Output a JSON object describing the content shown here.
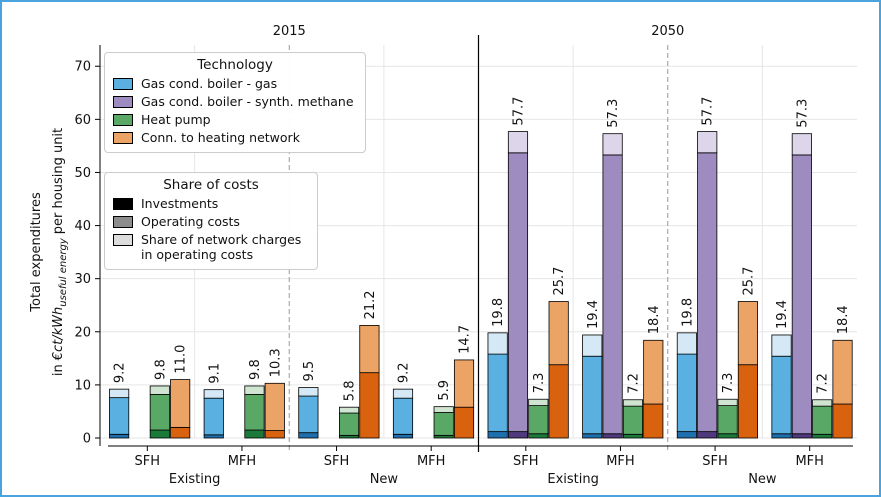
{
  "chart_data": {
    "type": "stacked_bar",
    "panels": [
      {
        "title": "2015",
        "groups": [
          {
            "label": "Existing",
            "categories": [
              "SFH",
              "MFH"
            ]
          },
          {
            "label": "New",
            "categories": [
              "SFH",
              "MFH"
            ]
          }
        ]
      },
      {
        "title": "2050",
        "groups": [
          {
            "label": "Existing",
            "categories": [
              "SFH",
              "MFH"
            ]
          },
          {
            "label": "New",
            "categories": [
              "SFH",
              "MFH"
            ]
          }
        ]
      }
    ],
    "ylabel": {
      "line1": "Total expenditures",
      "prefix": "in",
      "unit": "€ct/kWh",
      "unit_subscript": "useful energy",
      "suffix": "per housing unit"
    },
    "ylim": [
      0,
      74
    ],
    "yticks": [
      0,
      10,
      20,
      30,
      40,
      50,
      60,
      70
    ],
    "grid": true,
    "legend_title": "Technology",
    "series": [
      {
        "name": "Gas cond. boiler - gas",
        "color": "#5ab0e0",
        "investment_color": "#1f6fae",
        "network_color": "#d5e8f5",
        "investments": [
          0.7,
          0.6,
          1.0,
          0.7,
          1.2,
          0.8,
          1.2,
          0.8
        ],
        "operating": [
          6.9,
          6.9,
          6.9,
          6.8,
          14.6,
          14.6,
          14.6,
          14.6
        ],
        "network_charges": [
          1.6,
          1.6,
          1.6,
          1.7,
          4.0,
          4.0,
          4.0,
          4.0
        ],
        "totals": [
          9.2,
          9.1,
          9.5,
          9.2,
          19.8,
          19.4,
          19.8,
          19.4
        ],
        "total_labels": [
          "9.2",
          "9.1",
          "9.5",
          "9.2",
          "19.8",
          "19.4",
          "19.8",
          "19.4"
        ]
      },
      {
        "name": "Gas cond. boiler - synth. methane",
        "color": "#9e8bc0",
        "investment_color": "#4e3a7d",
        "network_color": "#ddd6ea",
        "investments": [
          null,
          null,
          null,
          null,
          1.2,
          0.8,
          1.2,
          0.8
        ],
        "operating": [
          null,
          null,
          null,
          null,
          52.5,
          52.5,
          52.5,
          52.5
        ],
        "network_charges": [
          null,
          null,
          null,
          null,
          4.0,
          4.0,
          4.0,
          4.0
        ],
        "totals": [
          null,
          null,
          null,
          null,
          57.7,
          57.3,
          57.7,
          57.3
        ],
        "total_labels": [
          null,
          null,
          null,
          null,
          "57.7",
          "57.3",
          "57.7",
          "57.3"
        ]
      },
      {
        "name": "Heat pump",
        "color": "#5aa866",
        "investment_color": "#1b7a3a",
        "network_color": "#cfe5d2",
        "investments": [
          1.5,
          1.5,
          0.5,
          0.5,
          0.8,
          0.7,
          0.8,
          0.7
        ],
        "operating": [
          6.7,
          6.7,
          4.2,
          4.3,
          5.3,
          5.3,
          5.3,
          5.3
        ],
        "network_charges": [
          1.6,
          1.6,
          1.1,
          1.1,
          1.2,
          1.2,
          1.2,
          1.2
        ],
        "totals": [
          9.8,
          9.8,
          5.8,
          5.9,
          7.3,
          7.2,
          7.3,
          7.2
        ],
        "total_labels": [
          "9.8",
          "9.8",
          "5.8",
          "5.9",
          "7.3",
          "7.2",
          "7.3",
          "7.2"
        ]
      },
      {
        "name": "Conn. to heating network",
        "color": "#eba366",
        "investment_color": "#d8620e",
        "investments": [
          2.0,
          1.4,
          12.3,
          5.8,
          13.8,
          6.4,
          13.8,
          6.4
        ],
        "operating": [
          9.0,
          8.9,
          8.9,
          8.9,
          11.9,
          12.0,
          11.9,
          12.0
        ],
        "network_charges": [
          null,
          null,
          null,
          null,
          null,
          null,
          null,
          null
        ],
        "totals": [
          11.0,
          10.3,
          21.2,
          14.7,
          25.7,
          18.4,
          25.7,
          18.4
        ],
        "total_labels": [
          "11.0",
          "10.3",
          "21.2",
          "14.7",
          "25.7",
          "18.4",
          "25.7",
          "18.4"
        ]
      }
    ],
    "cost_legend": {
      "title": "Share of costs",
      "entries": [
        {
          "name": "Investments",
          "color": "#000000"
        },
        {
          "name": "Operating costs",
          "color": "#8c8c8c"
        },
        {
          "name": "Share of network charges in operating costs",
          "color": "#dcdcdc"
        }
      ]
    }
  }
}
